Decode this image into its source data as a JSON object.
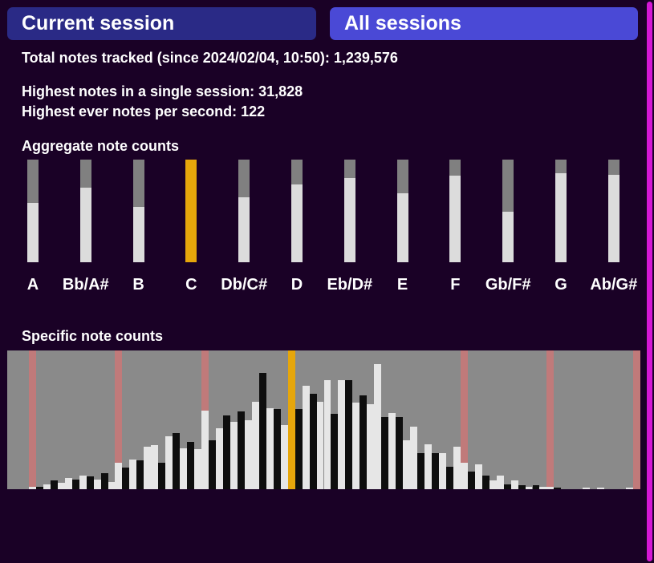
{
  "tabs": {
    "current_session": "Current session",
    "all_sessions": "All sessions"
  },
  "stats": {
    "total": "Total notes tracked (since 2024/02/04, 10:50): 1,239,576",
    "highest_session": "Highest notes in a single session: 31,828",
    "highest_nps": "Highest ever notes per second: 122"
  },
  "aggregate": {
    "heading": "Aggregate note counts",
    "selected": "C",
    "notes": [
      {
        "label": "A",
        "fraction": 0.58
      },
      {
        "label": "Bb/A#",
        "fraction": 0.73
      },
      {
        "label": "B",
        "fraction": 0.54
      },
      {
        "label": "C",
        "fraction": 1.0
      },
      {
        "label": "Db/C#",
        "fraction": 0.63
      },
      {
        "label": "D",
        "fraction": 0.76
      },
      {
        "label": "Eb/D#",
        "fraction": 0.82
      },
      {
        "label": "E",
        "fraction": 0.67
      },
      {
        "label": "F",
        "fraction": 0.84
      },
      {
        "label": "Gb/F#",
        "fraction": 0.49
      },
      {
        "label": "G",
        "fraction": 0.87
      },
      {
        "label": "Ab/G#",
        "fraction": 0.85
      }
    ]
  },
  "specific": {
    "heading": "Specific note counts",
    "selected_index": 39,
    "marker_indices": [
      3,
      15,
      27,
      39,
      63,
      75,
      87
    ],
    "keys": [
      {
        "type": "white",
        "v": 0.0
      },
      {
        "type": "black",
        "v": 0.0
      },
      {
        "type": "white",
        "v": 0.0
      },
      {
        "type": "white",
        "v": 0.02
      },
      {
        "type": "black",
        "v": 0.02
      },
      {
        "type": "white",
        "v": 0.04
      },
      {
        "type": "black",
        "v": 0.07
      },
      {
        "type": "white",
        "v": 0.05
      },
      {
        "type": "white",
        "v": 0.09
      },
      {
        "type": "black",
        "v": 0.08
      },
      {
        "type": "white",
        "v": 0.11
      },
      {
        "type": "black",
        "v": 0.1
      },
      {
        "type": "white",
        "v": 0.08
      },
      {
        "type": "black",
        "v": 0.13
      },
      {
        "type": "white",
        "v": 0.06
      },
      {
        "type": "white",
        "v": 0.21
      },
      {
        "type": "black",
        "v": 0.17
      },
      {
        "type": "white",
        "v": 0.24
      },
      {
        "type": "black",
        "v": 0.23
      },
      {
        "type": "white",
        "v": 0.34
      },
      {
        "type": "white",
        "v": 0.35
      },
      {
        "type": "black",
        "v": 0.21
      },
      {
        "type": "white",
        "v": 0.42
      },
      {
        "type": "black",
        "v": 0.45
      },
      {
        "type": "white",
        "v": 0.33
      },
      {
        "type": "black",
        "v": 0.38
      },
      {
        "type": "white",
        "v": 0.32
      },
      {
        "type": "white",
        "v": 0.63
      },
      {
        "type": "black",
        "v": 0.39
      },
      {
        "type": "white",
        "v": 0.49
      },
      {
        "type": "black",
        "v": 0.59
      },
      {
        "type": "white",
        "v": 0.54
      },
      {
        "type": "black",
        "v": 0.62
      },
      {
        "type": "white",
        "v": 0.55
      },
      {
        "type": "white",
        "v": 0.7
      },
      {
        "type": "black",
        "v": 0.93
      },
      {
        "type": "white",
        "v": 0.65
      },
      {
        "type": "black",
        "v": 0.64
      },
      {
        "type": "white",
        "v": 0.51
      },
      {
        "type": "white",
        "v": 0.89
      },
      {
        "type": "black",
        "v": 0.64
      },
      {
        "type": "white",
        "v": 0.83
      },
      {
        "type": "black",
        "v": 0.76
      },
      {
        "type": "white",
        "v": 0.7
      },
      {
        "type": "white",
        "v": 0.87
      },
      {
        "type": "black",
        "v": 0.6
      },
      {
        "type": "white",
        "v": 0.87
      },
      {
        "type": "black",
        "v": 0.87
      },
      {
        "type": "white",
        "v": 0.69
      },
      {
        "type": "black",
        "v": 0.75
      },
      {
        "type": "white",
        "v": 0.68
      },
      {
        "type": "white",
        "v": 1.0
      },
      {
        "type": "black",
        "v": 0.58
      },
      {
        "type": "white",
        "v": 0.61
      },
      {
        "type": "black",
        "v": 0.58
      },
      {
        "type": "white",
        "v": 0.39
      },
      {
        "type": "white",
        "v": 0.5
      },
      {
        "type": "black",
        "v": 0.29
      },
      {
        "type": "white",
        "v": 0.36
      },
      {
        "type": "black",
        "v": 0.29
      },
      {
        "type": "white",
        "v": 0.29
      },
      {
        "type": "black",
        "v": 0.18
      },
      {
        "type": "white",
        "v": 0.34
      },
      {
        "type": "white",
        "v": 0.21
      },
      {
        "type": "black",
        "v": 0.14
      },
      {
        "type": "white",
        "v": 0.2
      },
      {
        "type": "black",
        "v": 0.11
      },
      {
        "type": "white",
        "v": 0.07
      },
      {
        "type": "white",
        "v": 0.11
      },
      {
        "type": "black",
        "v": 0.04
      },
      {
        "type": "white",
        "v": 0.07
      },
      {
        "type": "black",
        "v": 0.03
      },
      {
        "type": "white",
        "v": 0.02
      },
      {
        "type": "black",
        "v": 0.03
      },
      {
        "type": "white",
        "v": 0.02
      },
      {
        "type": "white",
        "v": 0.02
      },
      {
        "type": "black",
        "v": 0.01
      },
      {
        "type": "white",
        "v": 0.0
      },
      {
        "type": "black",
        "v": 0.0
      },
      {
        "type": "white",
        "v": 0.0
      },
      {
        "type": "white",
        "v": 0.01
      },
      {
        "type": "black",
        "v": 0.0
      },
      {
        "type": "white",
        "v": 0.01
      },
      {
        "type": "black",
        "v": 0.0
      },
      {
        "type": "white",
        "v": 0.0
      },
      {
        "type": "black",
        "v": 0.0
      },
      {
        "type": "white",
        "v": 0.01
      },
      {
        "type": "white",
        "v": 0.0
      }
    ]
  },
  "colors": {
    "background": "#1a0126",
    "tab_current": "#2a2a86",
    "tab_all": "#4a49d6",
    "selected": "#e6a60b",
    "marker": "#c07a7a",
    "scrollbar": "#d517d5"
  }
}
